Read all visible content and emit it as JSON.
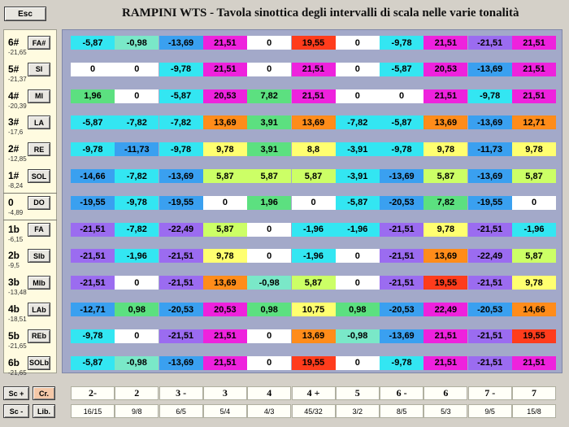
{
  "esc_label": "Esc",
  "title": "RAMPINI WTS - Tavola sinottica degli intervalli di scala nelle varie tonalità",
  "controls": {
    "sc_plus": "Sc +",
    "sc_minus": "Sc -",
    "cr": "Cr.",
    "lib": "Lib."
  },
  "rows": [
    {
      "sign": "6#",
      "cents": "-21,65",
      "key": "FA#"
    },
    {
      "sign": "5#",
      "cents": "-21,37",
      "key": "SI"
    },
    {
      "sign": "4#",
      "cents": "-20,39",
      "key": "MI"
    },
    {
      "sign": "3#",
      "cents": "-17,6",
      "key": "LA"
    },
    {
      "sign": "2#",
      "cents": "-12,85",
      "key": "RE"
    },
    {
      "sign": "1#",
      "cents": "-8,24",
      "key": "SOL"
    },
    {
      "sign": "0",
      "cents": "-4,89",
      "key": "DO"
    },
    {
      "sign": "1b",
      "cents": "-6,15",
      "key": "FA"
    },
    {
      "sign": "2b",
      "cents": "-9,5",
      "key": "SIb"
    },
    {
      "sign": "3b",
      "cents": "-13,48",
      "key": "MIb"
    },
    {
      "sign": "4b",
      "cents": "-18,51",
      "key": "LAb"
    },
    {
      "sign": "5b",
      "cents": "-21,65",
      "key": "REb"
    },
    {
      "sign": "6b",
      "cents": "-21,65",
      "key": "SOLb"
    }
  ],
  "degrees": [
    "2-",
    "2",
    "3 -",
    "3",
    "4",
    "4 +",
    "5",
    "6 -",
    "6",
    "7 -",
    "7"
  ],
  "ratios": [
    "16/15",
    "9/8",
    "6/5",
    "5/4",
    "4/3",
    "45/32",
    "3/2",
    "8/5",
    "5/3",
    "9/5",
    "15/8"
  ],
  "colors": {
    "-5,87": "#33e6f2",
    "-0,98": "#7ae8c8",
    "-13,69": "#3aa0f0",
    "21,51": "#ee22dd",
    "0": "#ffffff",
    "19,55": "#ff3c1c",
    "-9,78": "#33e6f2",
    "-21,51": "#9b6cf0",
    "20,53": "#ee22dd",
    "1,96": "#5ce080",
    "7,82": "#5ce080",
    "-7,82": "#33e6f2",
    "13,69": "#ff8c1a",
    "3,91": "#5ce080",
    "12,71": "#ff8c1a",
    "-11,73": "#3aa0f0",
    "9,78": "#ffff70",
    "8,8": "#ffff70",
    "-3,91": "#33e6f2",
    "-14,66": "#3aa0f0",
    "5,87": "#ccff66",
    "-19,55": "#3aa0f0",
    "-20,53": "#3aa0f0",
    "-22,49": "#9b6cf0",
    "-1,96": "#33e6f2",
    "-12,71": "#3aa0f0",
    "0,98": "#5ce080",
    "10,75": "#ffff70",
    "22,49": "#ee22dd",
    "14,66": "#ff8c1a"
  },
  "table": [
    [
      "-5,87",
      "-0,98",
      "-13,69",
      "21,51",
      "0",
      "19,55",
      "0",
      "-9,78",
      "21,51",
      "-21,51",
      "21,51"
    ],
    [
      "0",
      "0",
      "-9,78",
      "21,51",
      "0",
      "21,51",
      "0",
      "-5,87",
      "20,53",
      "-13,69",
      "21,51"
    ],
    [
      "1,96",
      "0",
      "-5,87",
      "20,53",
      "7,82",
      "21,51",
      "0",
      "0",
      "21,51",
      "-9,78",
      "21,51"
    ],
    [
      "-5,87",
      "-7,82",
      "-7,82",
      "13,69",
      "3,91",
      "13,69",
      "-7,82",
      "-5,87",
      "13,69",
      "-13,69",
      "12,71"
    ],
    [
      "-9,78",
      "-11,73",
      "-9,78",
      "9,78",
      "3,91",
      "8,8",
      "-3,91",
      "-9,78",
      "9,78",
      "-11,73",
      "9,78"
    ],
    [
      "-14,66",
      "-7,82",
      "-13,69",
      "5,87",
      "5,87",
      "5,87",
      "-3,91",
      "-13,69",
      "5,87",
      "-13,69",
      "5,87"
    ],
    [
      "-19,55",
      "-9,78",
      "-19,55",
      "0",
      "1,96",
      "0",
      "-5,87",
      "-20,53",
      "7,82",
      "-19,55",
      "0"
    ],
    [
      "-21,51",
      "-7,82",
      "-22,49",
      "5,87",
      "0",
      "-1,96",
      "-1,96",
      "-21,51",
      "9,78",
      "-21,51",
      "-1,96"
    ],
    [
      "-21,51",
      "-1,96",
      "-21,51",
      "9,78",
      "0",
      "-1,96",
      "0",
      "-21,51",
      "13,69",
      "-22,49",
      "5,87"
    ],
    [
      "-21,51",
      "0",
      "-21,51",
      "13,69",
      "-0,98",
      "5,87",
      "0",
      "-21,51",
      "19,55",
      "-21,51",
      "9,78"
    ],
    [
      "-12,71",
      "0,98",
      "-20,53",
      "20,53",
      "0,98",
      "10,75",
      "0,98",
      "-20,53",
      "22,49",
      "-20,53",
      "14,66"
    ],
    [
      "-9,78",
      "0",
      "-21,51",
      "21,51",
      "0",
      "13,69",
      "-0,98",
      "-13,69",
      "21,51",
      "-21,51",
      "19,55"
    ],
    [
      "-5,87",
      "-0,98",
      "-13,69",
      "21,51",
      "0",
      "19,55",
      "0",
      "-9,78",
      "21,51",
      "-21,51",
      "21,51"
    ]
  ]
}
